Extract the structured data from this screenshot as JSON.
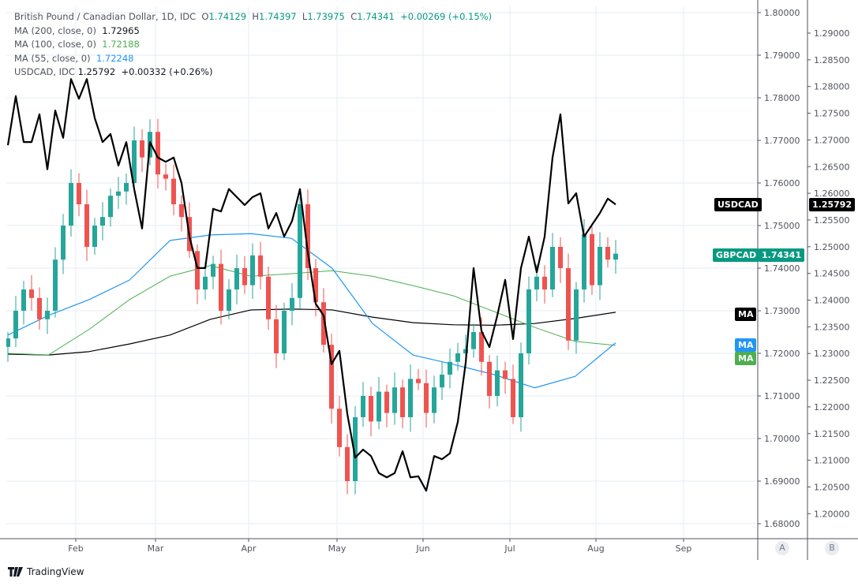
{
  "legend": {
    "symbol": "British Pound / Canadian Dollar, 1D, IDC",
    "open_label": "O",
    "open": "1.74129",
    "high_label": "H",
    "high": "1.74397",
    "low_label": "L",
    "low": "1.73975",
    "close_label": "C",
    "close": "1.74341",
    "change": "+0.00269 (+0.15%)",
    "ma200_label": "MA (200, close, 0)",
    "ma200_value": "1.72965",
    "ma100_label": "MA (100, close, 0)",
    "ma100_value": "1.72188",
    "ma55_label": "MA (55, close, 0)",
    "ma55_value": "1.72248",
    "usdcad_label": "USDCAD, IDC",
    "usdcad_value": "1.25792",
    "usdcad_change": "+0.00332 (+0.26%)"
  },
  "tags": {
    "usdcad_name": "USDCAD",
    "usdcad_price": "1.25792",
    "gbpcad_name": "GBPCAD",
    "gbpcad_price": "1.74341",
    "ma_label": "MA"
  },
  "scale_labels": {
    "a": "A",
    "b": "B"
  },
  "branding": "TradingView",
  "colors": {
    "up": "#26a69a",
    "down": "#ef5350",
    "usdcad": "#000000",
    "ma200": "#000000",
    "ma100": "#4caf50",
    "ma55": "#2196f3",
    "grid": "#e6edf3"
  },
  "chart_data": {
    "type": "candlestick+line",
    "title": "British Pound / Canadian Dollar, 1D, IDC",
    "x_tick_labels": [
      "Feb",
      "Mar",
      "Apr",
      "May",
      "Jun",
      "Jul",
      "Aug",
      "Sep"
    ],
    "left_axis": {
      "series": "GBPCAD",
      "ylim": [
        1.675,
        1.805
      ],
      "ticks": [
        "1.80000",
        "1.79000",
        "1.78000",
        "1.77000",
        "1.76000",
        "1.75000",
        "1.74000",
        "1.73000",
        "1.72000",
        "1.71000",
        "1.70000",
        "1.69000",
        "1.68000"
      ]
    },
    "right_axis": {
      "series": "USDCAD",
      "ylim": [
        1.1955,
        1.2962
      ],
      "ticks": [
        "1.29000",
        "1.28500",
        "1.28000",
        "1.27500",
        "1.27000",
        "1.26500",
        "1.26000",
        "1.25500",
        "1.25000",
        "1.24500",
        "1.24000",
        "1.23500",
        "1.23000",
        "1.22500",
        "1.22000",
        "1.21500",
        "1.21000",
        "1.20500",
        "1.20000"
      ]
    },
    "gbpcad_close": [
      1.7235,
      1.73,
      1.735,
      1.733,
      1.728,
      1.73,
      1.742,
      1.75,
      1.76,
      1.755,
      1.745,
      1.75,
      1.752,
      1.757,
      1.758,
      1.76,
      1.77,
      1.766,
      1.772,
      1.762,
      1.761,
      1.755,
      1.752,
      1.744,
      1.735,
      1.738,
      1.741,
      1.73,
      1.735,
      1.74,
      1.736,
      1.743,
      1.738,
      1.728,
      1.72,
      1.73,
      1.733,
      1.755,
      1.74,
      1.732,
      1.722,
      1.707,
      1.698,
      1.69,
      1.705,
      1.71,
      1.704,
      1.711,
      1.706,
      1.712,
      1.705,
      1.714,
      1.713,
      1.706,
      1.712,
      1.715,
      1.718,
      1.72,
      1.721,
      1.725,
      1.718,
      1.71,
      1.716,
      1.714,
      1.705,
      1.72,
      1.735,
      1.738,
      1.735,
      1.745,
      1.74,
      1.723,
      1.735,
      1.748,
      1.736,
      1.745,
      1.742,
      1.74341
    ],
    "usdcad_close": [
      1.269,
      1.2782,
      1.2696,
      1.2696,
      1.2748,
      1.2645,
      1.2755,
      1.2704,
      1.2814,
      1.2777,
      1.2814,
      1.2741,
      1.2696,
      1.2711,
      1.2652,
      1.2696,
      1.2608,
      1.2534,
      1.2696,
      1.2667,
      1.2659,
      1.2667,
      1.2619,
      1.2519,
      1.246,
      1.246,
      1.2571,
      1.2566,
      1.2608,
      1.2593,
      1.2578,
      1.2593,
      1.26,
      1.2534,
      1.2563,
      1.2519,
      1.2548,
      1.2608,
      1.2489,
      1.2393,
      1.2371,
      1.228,
      1.2305,
      1.2187,
      1.2105,
      1.212,
      1.2108,
      1.2076,
      1.2068,
      1.2076,
      1.2117,
      1.2068,
      1.207,
      1.2043,
      1.2108,
      1.2102,
      1.2113,
      1.2172,
      1.2283,
      1.246,
      1.2342,
      1.2312,
      1.2371,
      1.2438,
      1.2327,
      1.246,
      1.2519,
      1.2452,
      1.2519,
      1.2667,
      1.2748,
      1.2581,
      1.26,
      1.2519,
      1.2541,
      1.2563,
      1.259,
      1.25792
    ],
    "ma200": [
      1.7198,
      1.7196,
      1.7204,
      1.7222,
      1.7243,
      1.728,
      1.7302,
      1.7304,
      1.7302,
      1.7285,
      1.7272,
      1.7267,
      1.7266,
      1.727,
      1.7282,
      1.72965
    ],
    "ma100": [
      1.72,
      1.7196,
      1.7256,
      1.7326,
      1.7381,
      1.7406,
      1.7381,
      1.7387,
      1.7394,
      1.7381,
      1.7359,
      1.7335,
      1.7298,
      1.7261,
      1.7228,
      1.72188
    ],
    "ma55": [
      1.7243,
      1.7289,
      1.7326,
      1.7372,
      1.7465,
      1.7478,
      1.7481,
      1.747,
      1.74,
      1.727,
      1.7196,
      1.7174,
      1.715,
      1.7119,
      1.7146,
      1.72248
    ],
    "grid": true
  }
}
